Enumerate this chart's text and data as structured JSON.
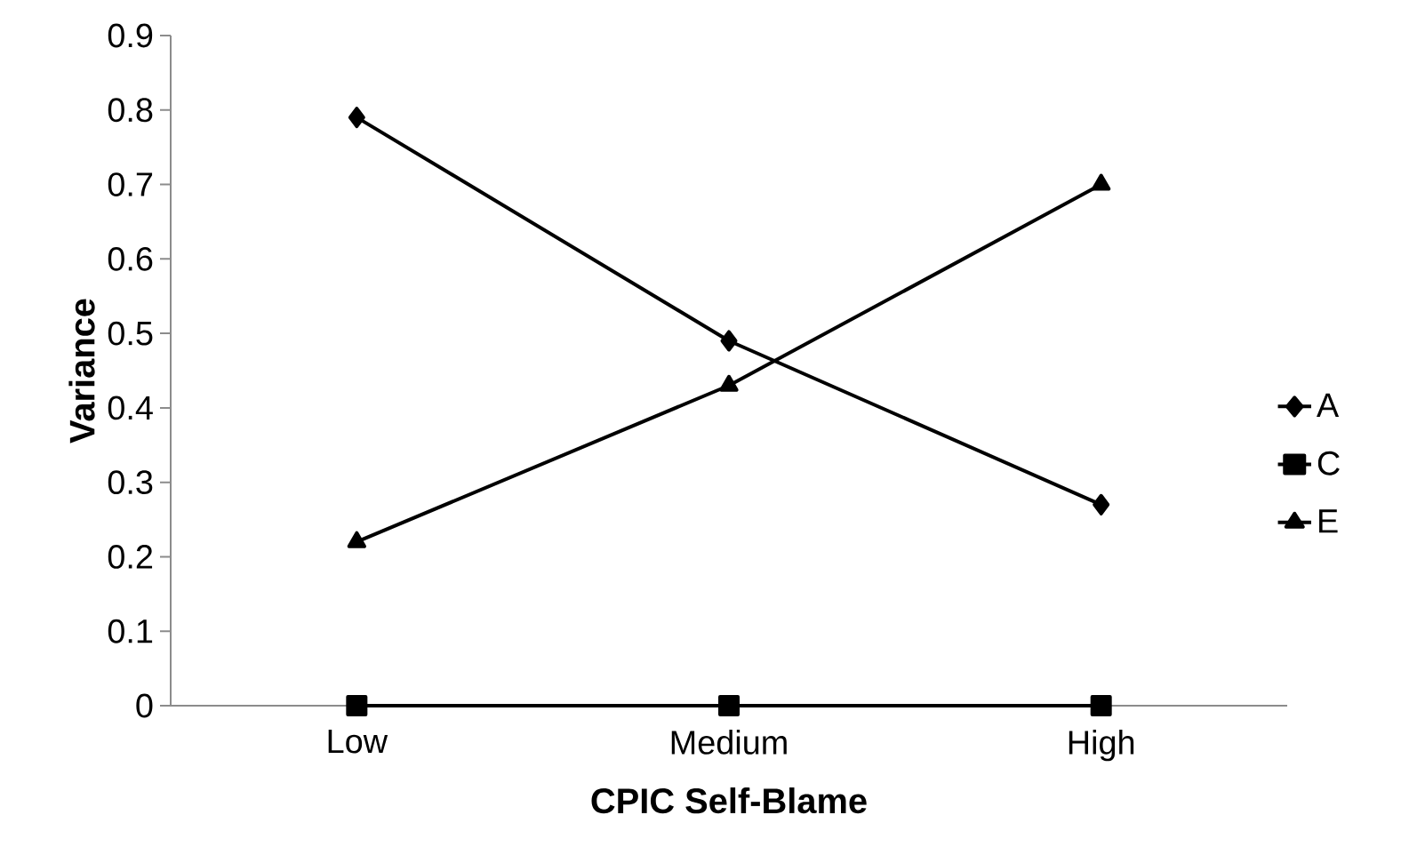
{
  "chart_data": {
    "type": "line",
    "xlabel": "CPIC Self-Blame",
    "ylabel": "Variance",
    "categories": [
      "Low",
      "Medium",
      "High"
    ],
    "series": [
      {
        "name": "A",
        "color": "#000000",
        "marker": "diamond",
        "values": [
          0.79,
          0.49,
          0.27
        ]
      },
      {
        "name": "C",
        "color": "#000000",
        "marker": "square",
        "values": [
          0,
          0,
          0
        ]
      },
      {
        "name": "E",
        "color": "#000000",
        "marker": "triangle",
        "values": [
          0.22,
          0.43,
          0.7
        ]
      }
    ],
    "ylim": [
      0,
      0.9
    ],
    "yticks": [
      0,
      0.1,
      0.2,
      0.3,
      0.4,
      0.5,
      0.6,
      0.7,
      0.8,
      0.9
    ],
    "legend": "right"
  }
}
